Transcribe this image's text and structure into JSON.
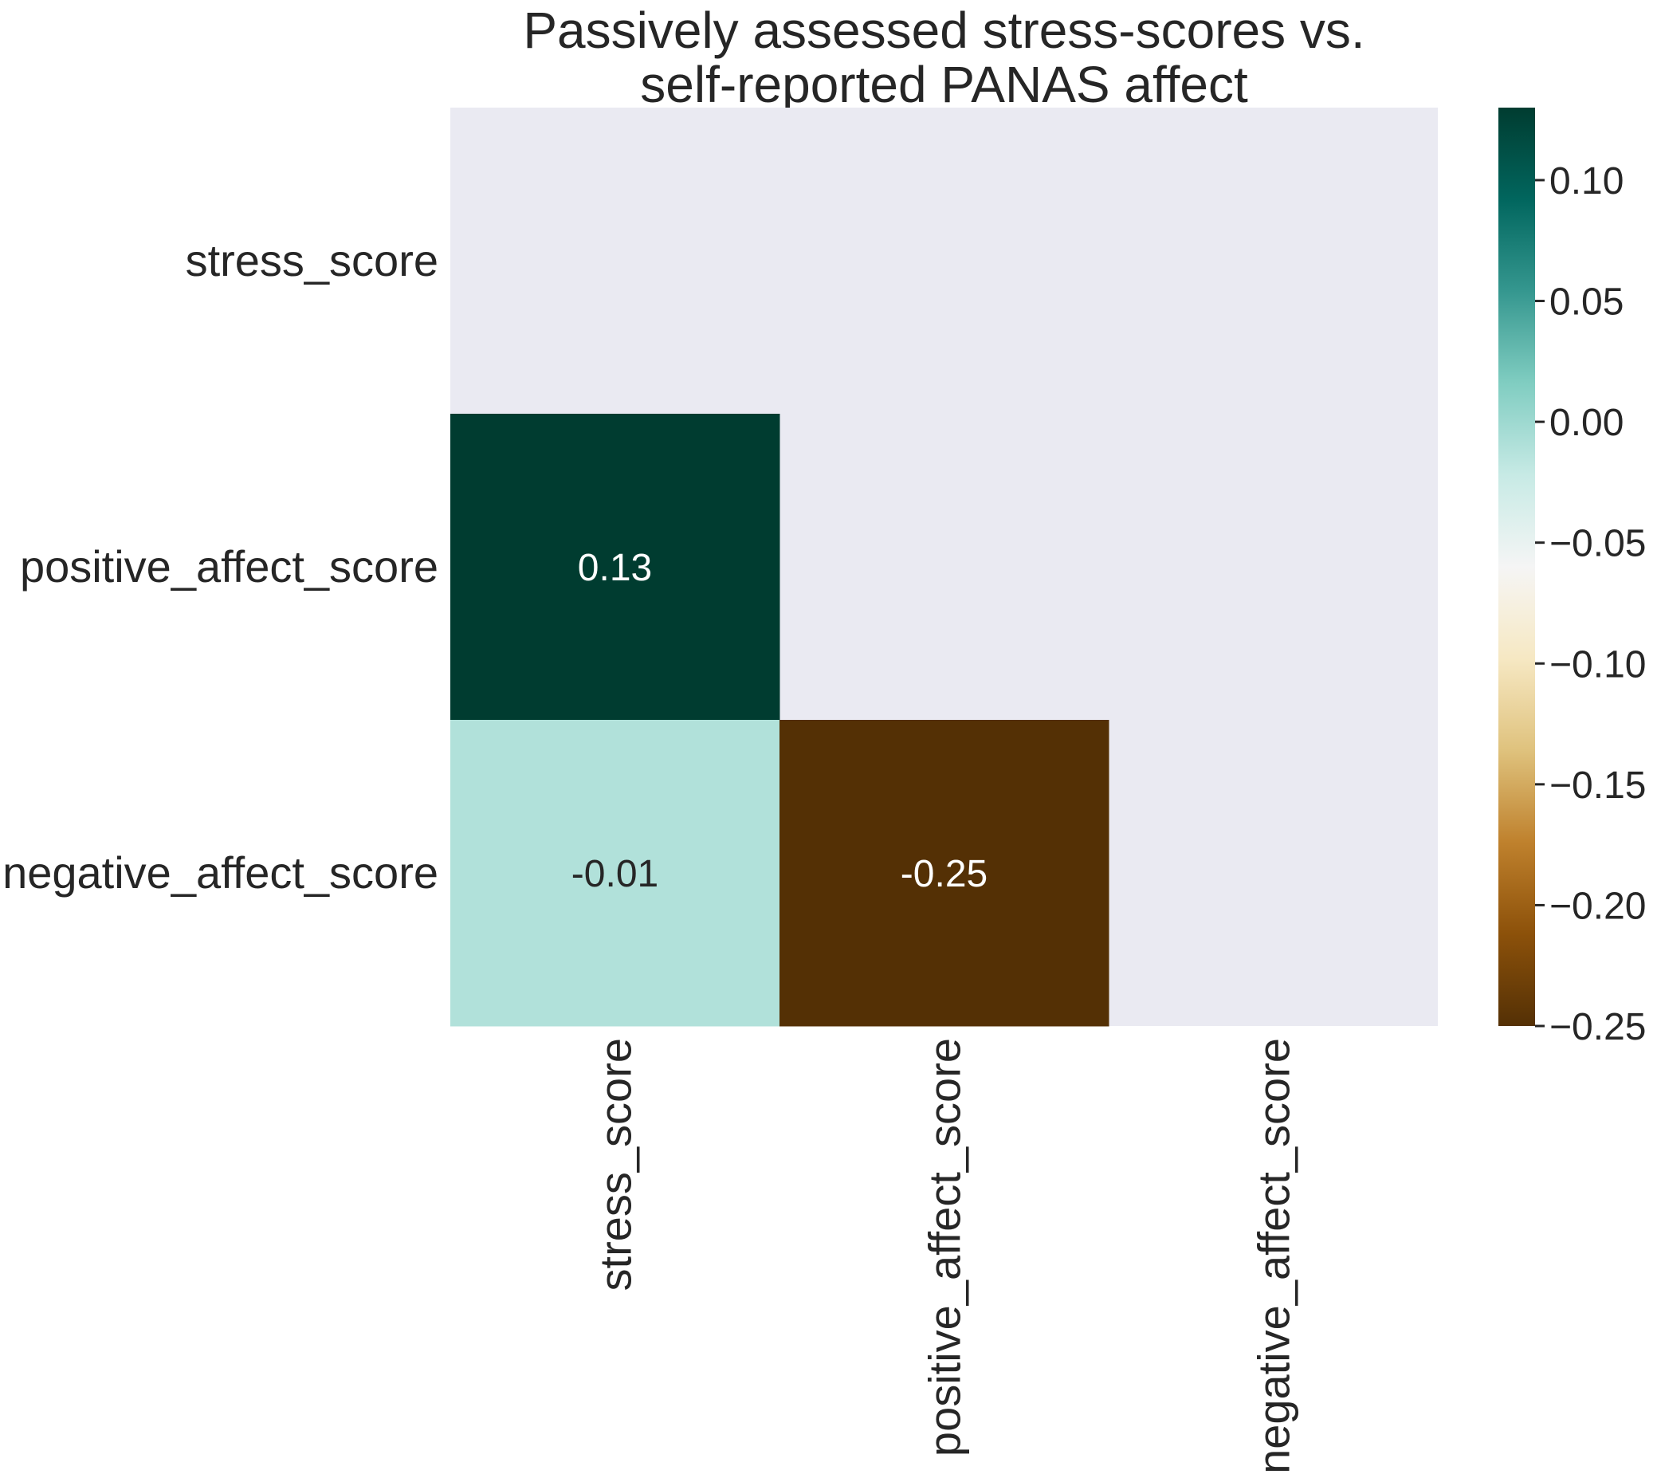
{
  "chart_data": {
    "type": "heatmap",
    "title": "Passively assessed stress-scores vs.\nself-reported PANAS affect",
    "rows": [
      "stress_score",
      "positive_affect_score",
      "negative_affect_score"
    ],
    "columns": [
      "stress_score",
      "positive_affect_score",
      "negative_affect_score"
    ],
    "values": [
      [
        null,
        null,
        null
      ],
      [
        0.13,
        null,
        null
      ],
      [
        -0.01,
        -0.25,
        null
      ]
    ],
    "annotations": [
      [
        null,
        null,
        null
      ],
      [
        "0.13",
        null,
        null
      ],
      [
        "-0.01",
        "-0.25",
        null
      ]
    ],
    "mask": "upper-triangle-and-diagonal",
    "colormap": "BrBG",
    "vmin": -0.25,
    "vmax": 0.13,
    "colorbar": {
      "ticks": [
        0.1,
        0.05,
        0.0,
        -0.05,
        -0.1,
        -0.15,
        -0.2,
        -0.25
      ],
      "tick_labels": [
        "0.10",
        "0.05",
        "0.00",
        "−0.05",
        "−0.10",
        "−0.15",
        "−0.20",
        "−0.25"
      ]
    },
    "colors": {
      "masked_background": "#eaeaf2",
      "cell_0.13": "#003f30",
      "cell_-0.01": "#b3e0da",
      "cell_-0.25": "#543005",
      "annotation_light": "#ffffff",
      "annotation_dark": "#262626"
    }
  }
}
